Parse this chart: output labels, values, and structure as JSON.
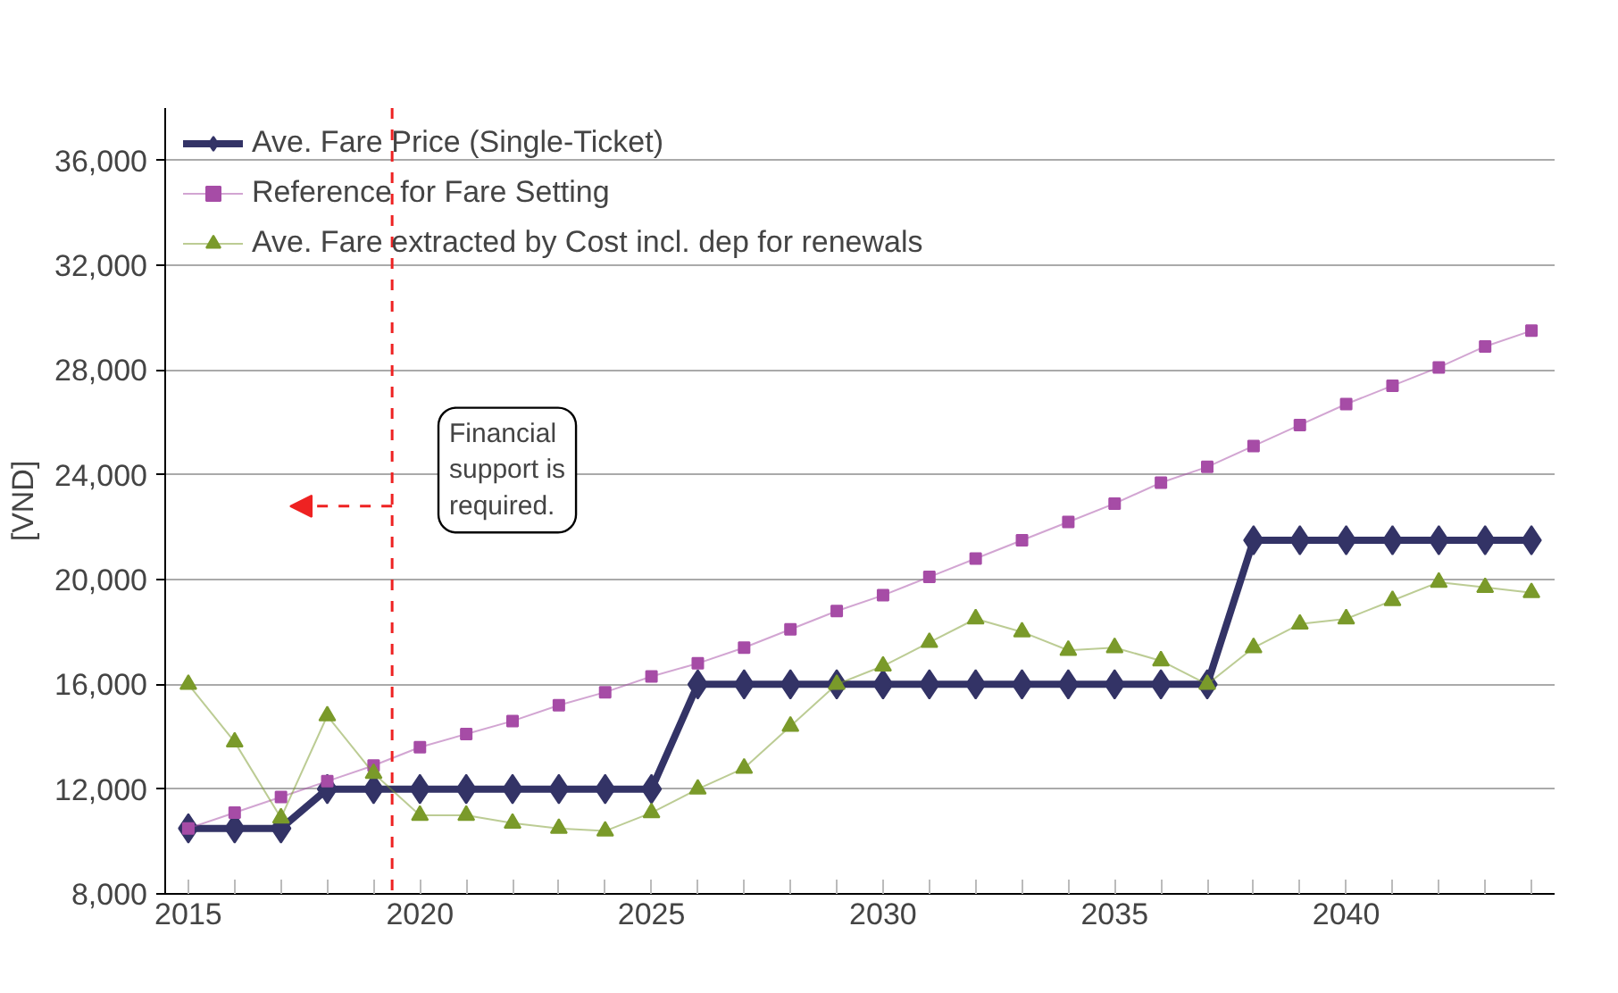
{
  "chart_data": {
    "type": "line",
    "ylabel": "[VND]",
    "x": [
      2015,
      2016,
      2017,
      2018,
      2019,
      2020,
      2021,
      2022,
      2023,
      2024,
      2025,
      2026,
      2027,
      2028,
      2029,
      2030,
      2031,
      2032,
      2033,
      2034,
      2035,
      2036,
      2037,
      2038,
      2039,
      2040,
      2041,
      2042,
      2043,
      2044
    ],
    "series": [
      {
        "name": "Ave. Fare Price (Single-Ticket)",
        "color": "#333366",
        "marker": "diamond",
        "values": [
          10500,
          10500,
          10500,
          12000,
          12000,
          12000,
          12000,
          12000,
          12000,
          12000,
          12000,
          16000,
          16000,
          16000,
          16000,
          16000,
          16000,
          16000,
          16000,
          16000,
          16000,
          16000,
          16000,
          21500,
          21500,
          21500,
          21500,
          21500,
          21500,
          21500
        ]
      },
      {
        "name": "Reference for Fare Setting",
        "color": "#a64ca6",
        "marker": "square",
        "values": [
          10500,
          11100,
          11700,
          12300,
          12900,
          13600,
          14100,
          14600,
          15200,
          15700,
          16300,
          16800,
          17400,
          18100,
          18800,
          19400,
          20100,
          20800,
          21500,
          22200,
          22900,
          23700,
          24300,
          25100,
          25900,
          26700,
          27400,
          28100,
          28900,
          29500
        ]
      },
      {
        "name": "Ave. Fare extracted by Cost incl. dep for renewals",
        "color": "#7a9a2a",
        "marker": "triangle",
        "values": [
          16000,
          13800,
          10900,
          14800,
          12600,
          11000,
          11000,
          10700,
          10500,
          10400,
          11100,
          12000,
          12800,
          14400,
          16000,
          16700,
          17600,
          18500,
          18000,
          17300,
          17400,
          16900,
          16000,
          17400,
          18300,
          18500,
          19200,
          19900,
          19700,
          19500
        ]
      }
    ],
    "xlim": [
      2014.5,
      2044.5
    ],
    "xticks": [
      2015,
      {
        "value": 2016,
        "label": null
      },
      {
        "value": 2017,
        "label": null
      },
      {
        "value": 2018,
        "label": null
      },
      {
        "value": 2019,
        "label": null
      },
      2020,
      {
        "value": 2021,
        "label": null
      },
      {
        "value": 2022,
        "label": null
      },
      {
        "value": 2023,
        "label": null
      },
      {
        "value": 2024,
        "label": null
      },
      2025,
      {
        "value": 2026,
        "label": null
      },
      {
        "value": 2027,
        "label": null
      },
      {
        "value": 2028,
        "label": null
      },
      {
        "value": 2029,
        "label": null
      },
      2030,
      {
        "value": 2031,
        "label": null
      },
      {
        "value": 2032,
        "label": null
      },
      {
        "value": 2033,
        "label": null
      },
      {
        "value": 2034,
        "label": null
      },
      2035,
      {
        "value": 2036,
        "label": null
      },
      {
        "value": 2037,
        "label": null
      },
      {
        "value": 2038,
        "label": null
      },
      {
        "value": 2039,
        "label": null
      },
      2040,
      {
        "value": 2041,
        "label": null
      },
      {
        "value": 2042,
        "label": null
      },
      {
        "value": 2043,
        "label": null
      },
      {
        "value": 2044,
        "label": null
      }
    ],
    "ylim": [
      8000,
      38000
    ],
    "yticks": [
      {
        "value": 8000,
        "label": "8,000"
      },
      {
        "value": 12000,
        "label": "12,000"
      },
      {
        "value": 16000,
        "label": "16,000"
      },
      {
        "value": 20000,
        "label": "20,000"
      },
      {
        "value": 24000,
        "label": "24,000"
      },
      {
        "value": 28000,
        "label": "28,000"
      },
      {
        "value": 32000,
        "label": "32,000"
      },
      {
        "value": 36000,
        "label": "36,000"
      }
    ],
    "grid": "y",
    "legend": "top left",
    "line_style": "solid",
    "ref_lines": [
      {
        "axis": "x",
        "value": 2019.4,
        "color": "#ee2222",
        "line_style": "dashed"
      }
    ],
    "annotations": [
      {
        "text": "Financial support is required.",
        "x": 2019.4,
        "y": 22800
      }
    ]
  }
}
